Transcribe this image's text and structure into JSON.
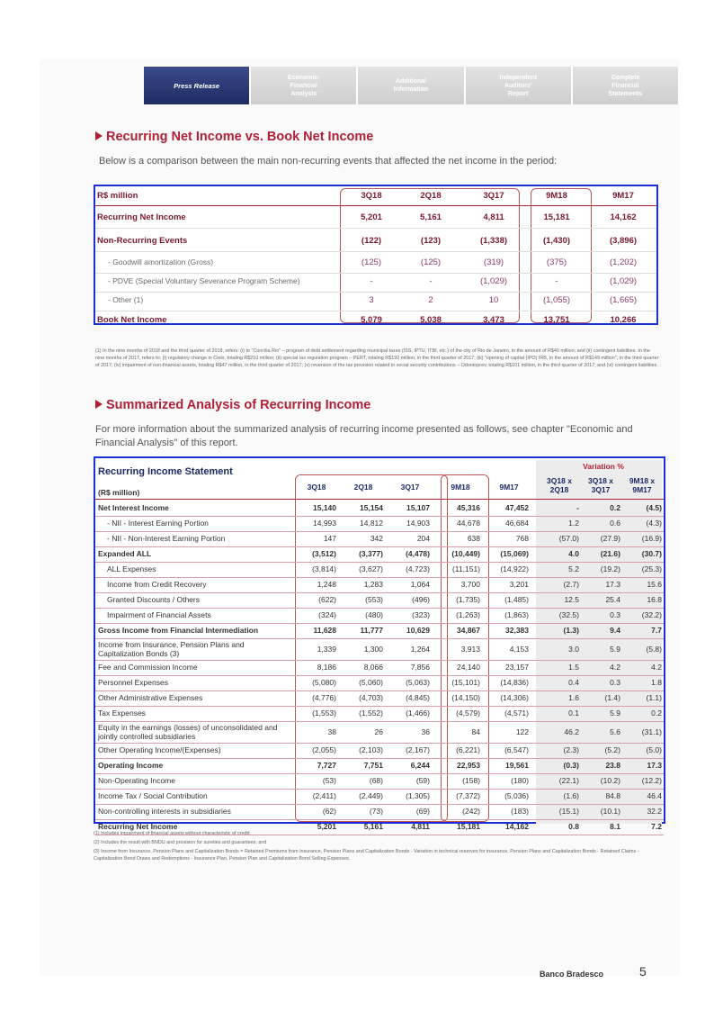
{
  "nav": [
    "Press Release",
    "Economic-\nFinancial\nAnalysis",
    "Additional\nInformation",
    "Independent\nAuditors'\nReport",
    "Complete\nFinancial\nStatements"
  ],
  "section1": {
    "title": "Recurring Net Income vs. Book Net Income",
    "intro": "Below is a comparison between the main non-recurring events that affected the net income in the period:",
    "table": {
      "unit": "R$ million",
      "columns": [
        "3Q18",
        "2Q18",
        "3Q17",
        "9M18",
        "9M17"
      ],
      "rows": [
        {
          "label": "Recurring Net Income",
          "values": [
            "5,201",
            "5,161",
            "4,811",
            "15,181",
            "14,162"
          ],
          "style": "hdr"
        },
        {
          "label": "Non-Recurring Events",
          "values": [
            "(122)",
            "(123)",
            "(1,338)",
            "(1,430)",
            "(3,896)"
          ],
          "style": "hdr"
        },
        {
          "label": "- Goodwill amortization (Gross)",
          "values": [
            "(125)",
            "(125)",
            "(319)",
            "(375)",
            "(1,202)"
          ],
          "style": "sub"
        },
        {
          "label": "- PDVE (Special Voluntary Severance Program Scheme)",
          "values": [
            "-",
            "-",
            "(1,029)",
            "-",
            "(1,029)"
          ],
          "style": "sub"
        },
        {
          "label": "- Other (1)",
          "values": [
            "3",
            "2",
            "10",
            "(1,055)",
            "(1,665)"
          ],
          "style": "sub"
        },
        {
          "label": "Book Net Income",
          "values": [
            "5,079",
            "5,038",
            "3,473",
            "13,751",
            "10,266"
          ],
          "style": "hdr"
        }
      ]
    },
    "footnote": "(1) In the nine months of 2018 and the third quarter of 2018, refers: (i) to \"Concilia Rio\" – program of debt settlement regarding municipal taxes (ISS, IPTU, ITBI, etc.) of the city of Rio de Janeiro, in the amount of R$40 million; and (ii) contingent liabilities. In the nine months of 2017, refers to: (i) regulatory change in Cielo, totaling R$210 million; (ii) special tax regulation program – PERT, totaling R$192 million, in the third quarter of 2017; (iii) \"opening of capital (IPO) IRB, in the amount of R$149 million\", in the third quarter of 2017; (iv) impairment of non-financial assets, totaling R$47 million, in the third quarter of 2017; (v) reversion of the tax provision related to social security contributions – Odontoprev, totaling R$101 million, in the third quarter of 2017; and (vi) contingent liabilities."
  },
  "section2": {
    "title": "Summarized Analysis of Recurring Income",
    "intro": "For more information about the summarized analysis of recurring income presented as follows, see chapter \"Economic and Financial Analysis\" of this report.",
    "table": {
      "title": "Recurring Income Statement",
      "unit": "(R$ million)",
      "variation_label": "Variation %",
      "columns": [
        "3Q18",
        "2Q18",
        "3Q17",
        "9M18",
        "9M17",
        "3Q18 x 2Q18",
        "3Q18 x 3Q17",
        "9M18 x 9M17"
      ],
      "rows": [
        {
          "label": "Net Interest Income",
          "values": [
            "15,140",
            "15,154",
            "15,107",
            "45,316",
            "47,452",
            "-",
            "0.2",
            "(4.5)"
          ],
          "style": "bold"
        },
        {
          "label": "- NII - Interest Earning Portion",
          "values": [
            "14,993",
            "14,812",
            "14,903",
            "44,678",
            "46,684",
            "1.2",
            "0.6",
            "(4.3)"
          ],
          "style": "indent"
        },
        {
          "label": "- NII - Non-Interest Earning Portion",
          "values": [
            "147",
            "342",
            "204",
            "638",
            "768",
            "(57.0)",
            "(27.9)",
            "(16.9)"
          ],
          "style": "indent"
        },
        {
          "label": "Expanded ALL",
          "values": [
            "(3,512)",
            "(3,377)",
            "(4,478)",
            "(10,449)",
            "(15,069)",
            "4.0",
            "(21.6)",
            "(30.7)"
          ],
          "style": "bold"
        },
        {
          "label": "ALL Expenses",
          "values": [
            "(3,814)",
            "(3,627)",
            "(4,723)",
            "(11,151)",
            "(14,922)",
            "5.2",
            "(19.2)",
            "(25.3)"
          ],
          "style": "indent"
        },
        {
          "label": "Income from Credit Recovery",
          "values": [
            "1,248",
            "1,283",
            "1,064",
            "3,700",
            "3,201",
            "(2.7)",
            "17.3",
            "15.6"
          ],
          "style": "indent"
        },
        {
          "label": "Granted Discounts / Others",
          "values": [
            "(622)",
            "(553)",
            "(496)",
            "(1,735)",
            "(1,485)",
            "12.5",
            "25.4",
            "16.8"
          ],
          "style": "indent"
        },
        {
          "label": "Impairment of Financial Assets",
          "values": [
            "(324)",
            "(480)",
            "(323)",
            "(1,263)",
            "(1,863)",
            "(32.5)",
            "0.3",
            "(32.2)"
          ],
          "style": "indent"
        },
        {
          "label": "Gross Income from Financial Intermediation",
          "values": [
            "11,628",
            "11,777",
            "10,629",
            "34,867",
            "32,383",
            "(1.3)",
            "9.4",
            "7.7"
          ],
          "style": "bold"
        },
        {
          "label": "Income from Insurance, Pension Plans and Capitalization Bonds (3)",
          "values": [
            "1,339",
            "1,300",
            "1,264",
            "3,913",
            "4,153",
            "3.0",
            "5.9",
            "(5.8)"
          ],
          "style": "two"
        },
        {
          "label": "Fee and Commission Income",
          "values": [
            "8,186",
            "8,066",
            "7,856",
            "24,140",
            "23,157",
            "1.5",
            "4.2",
            "4.2"
          ],
          "style": "plain"
        },
        {
          "label": "Personnel Expenses",
          "values": [
            "(5,080)",
            "(5,060)",
            "(5,063)",
            "(15,101)",
            "(14,836)",
            "0.4",
            "0.3",
            "1.8"
          ],
          "style": "plain"
        },
        {
          "label": "Other Administrative Expenses",
          "values": [
            "(4,776)",
            "(4,703)",
            "(4,845)",
            "(14,150)",
            "(14,306)",
            "1.6",
            "(1.4)",
            "(1.1)"
          ],
          "style": "plain"
        },
        {
          "label": "Tax Expenses",
          "values": [
            "(1,553)",
            "(1,552)",
            "(1,466)",
            "(4,579)",
            "(4,571)",
            "0.1",
            "5.9",
            "0.2"
          ],
          "style": "plain"
        },
        {
          "label": "Equity in the earnings (losses) of unconsolidated and jointly controlled subsidiaries",
          "values": [
            "38",
            "26",
            "36",
            "84",
            "122",
            "46.2",
            "5.6",
            "(31.1)"
          ],
          "style": "two"
        },
        {
          "label": "Other Operating Income/(Expenses)",
          "values": [
            "(2,055)",
            "(2,103)",
            "(2,167)",
            "(6,221)",
            "(6,547)",
            "(2.3)",
            "(5.2)",
            "(5.0)"
          ],
          "style": "plain"
        },
        {
          "label": "Operating Income",
          "values": [
            "7,727",
            "7,751",
            "6,244",
            "22,953",
            "19,561",
            "(0.3)",
            "23.8",
            "17.3"
          ],
          "style": "bold"
        },
        {
          "label": "Non-Operating Income",
          "values": [
            "(53)",
            "(68)",
            "(59)",
            "(158)",
            "(180)",
            "(22.1)",
            "(10.2)",
            "(12.2)"
          ],
          "style": "plain"
        },
        {
          "label": "Income Tax / Social Contribution",
          "values": [
            "(2,411)",
            "(2,449)",
            "(1,305)",
            "(7,372)",
            "(5,036)",
            "(1.6)",
            "84.8",
            "46.4"
          ],
          "style": "plain"
        },
        {
          "label": "Non-controlling interests in subsidiaries",
          "values": [
            "(62)",
            "(73)",
            "(69)",
            "(242)",
            "(183)",
            "(15.1)",
            "(10.1)",
            "32.2"
          ],
          "style": "plain"
        },
        {
          "label": "Recurring Net Income",
          "values": [
            "5,201",
            "5,161",
            "4,811",
            "15,181",
            "14,162",
            "0.8",
            "8.1",
            "7.2"
          ],
          "style": "bold"
        }
      ]
    },
    "footnotes": [
      "(1) Includes impairment of financial assets without characteristic of credit;",
      "(2) Includes the result with BNDU and provision for sureties and guarantees; and",
      "(3) Income from Insurance, Pension Plans and Capitalization Bonds = Retained Premiums from Insurance, Pension Plans and Capitalization Bonds - Variation in technical reserves for insurance, Pension Plans and Capitalization Bonds - Retained Claims - Capitalization Bond Draws and Redemptions - Insurance Plan, Pension Plan and Capitalization Bond Selling Expenses."
    ]
  },
  "footer": {
    "company": "Banco Bradesco",
    "page": "5"
  }
}
